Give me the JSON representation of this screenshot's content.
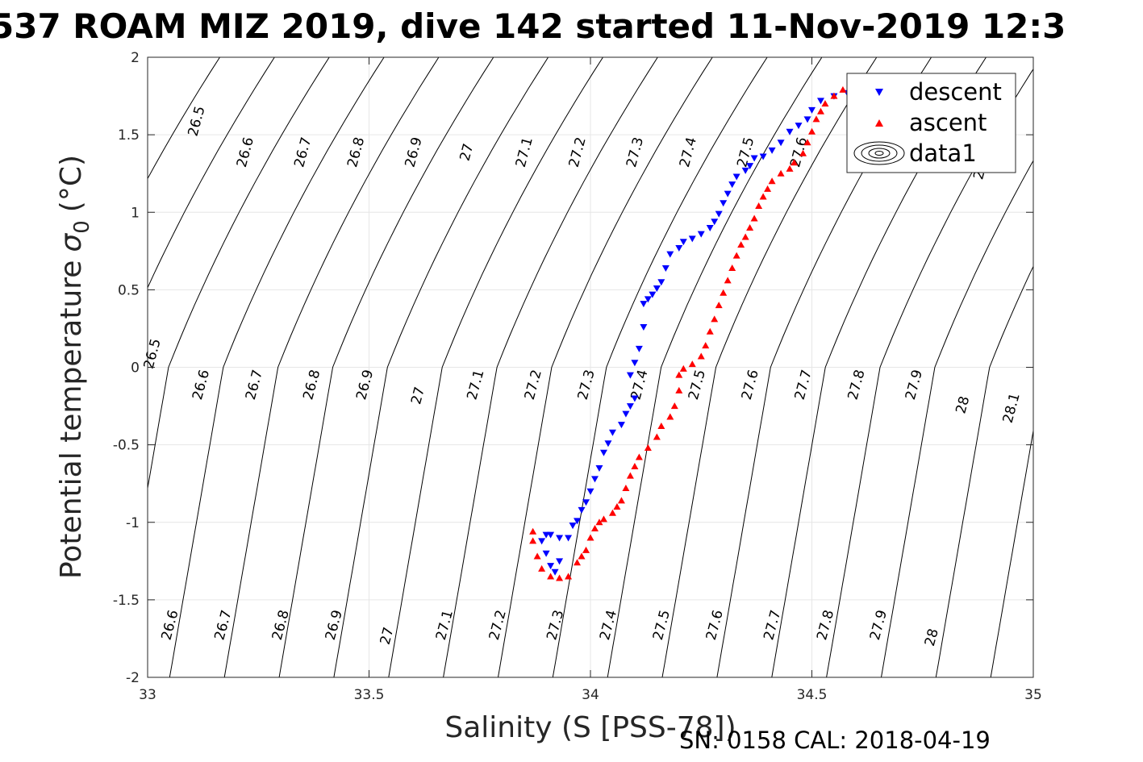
{
  "chart_data": {
    "type": "scatter",
    "title": "537 ROAM MIZ 2019, dive 142 started 11-Nov-2019 12:3",
    "xlabel": "Salinity (S [PSS-78])",
    "ylabel": "Potential temperature",
    "ylabel_symbol": "σ",
    "ylabel_sub": "0",
    "ylabel_unit": "(°C)",
    "xlim": [
      33,
      35
    ],
    "ylim": [
      -2,
      2
    ],
    "xticks": [
      "33",
      "33.5",
      "34",
      "34.5",
      "35"
    ],
    "yticks": [
      "2",
      "1.5",
      "1",
      "0.5",
      "0",
      "-0.5",
      "-1",
      "-1.5",
      "-2"
    ],
    "grid": true,
    "legend_position": "top-right",
    "footer": "SN: 0158  CAL: 2018-04-19",
    "series": [
      {
        "name": "descent",
        "marker": "triangle-down",
        "color": "#0000ff",
        "points": [
          [
            34.58,
            1.77
          ],
          [
            34.55,
            1.75
          ],
          [
            34.52,
            1.72
          ],
          [
            34.5,
            1.66
          ],
          [
            34.49,
            1.6
          ],
          [
            34.47,
            1.56
          ],
          [
            34.45,
            1.52
          ],
          [
            34.43,
            1.45
          ],
          [
            34.41,
            1.4
          ],
          [
            34.39,
            1.36
          ],
          [
            34.37,
            1.35
          ],
          [
            34.36,
            1.3
          ],
          [
            34.35,
            1.27
          ],
          [
            34.33,
            1.23
          ],
          [
            34.32,
            1.18
          ],
          [
            34.31,
            1.12
          ],
          [
            34.3,
            1.06
          ],
          [
            34.29,
            0.99
          ],
          [
            34.28,
            0.94
          ],
          [
            34.27,
            0.9
          ],
          [
            34.25,
            0.86
          ],
          [
            34.23,
            0.83
          ],
          [
            34.21,
            0.81
          ],
          [
            34.2,
            0.77
          ],
          [
            34.18,
            0.73
          ],
          [
            34.17,
            0.64
          ],
          [
            34.16,
            0.55
          ],
          [
            34.15,
            0.51
          ],
          [
            34.14,
            0.47
          ],
          [
            34.13,
            0.44
          ],
          [
            34.12,
            0.41
          ],
          [
            34.12,
            0.26
          ],
          [
            34.11,
            0.12
          ],
          [
            34.1,
            0.03
          ],
          [
            34.09,
            -0.05
          ],
          [
            34.1,
            -0.2
          ],
          [
            34.09,
            -0.25
          ],
          [
            34.08,
            -0.3
          ],
          [
            34.07,
            -0.37
          ],
          [
            34.05,
            -0.42
          ],
          [
            34.04,
            -0.49
          ],
          [
            34.03,
            -0.55
          ],
          [
            34.02,
            -0.65
          ],
          [
            34.01,
            -0.72
          ],
          [
            34.0,
            -0.8
          ],
          [
            33.99,
            -0.87
          ],
          [
            33.98,
            -0.92
          ],
          [
            33.97,
            -0.99
          ],
          [
            33.96,
            -1.02
          ],
          [
            33.95,
            -1.1
          ],
          [
            33.93,
            -1.25
          ],
          [
            33.92,
            -1.32
          ],
          [
            33.91,
            -1.28
          ],
          [
            33.9,
            -1.2
          ],
          [
            33.89,
            -1.12
          ],
          [
            33.9,
            -1.08
          ],
          [
            33.91,
            -1.08
          ],
          [
            33.93,
            -1.1
          ]
        ]
      },
      {
        "name": "ascent",
        "marker": "triangle-up",
        "color": "#ff0000",
        "points": [
          [
            34.57,
            1.79
          ],
          [
            34.55,
            1.75
          ],
          [
            34.53,
            1.7
          ],
          [
            34.52,
            1.65
          ],
          [
            34.51,
            1.6
          ],
          [
            34.5,
            1.52
          ],
          [
            34.49,
            1.45
          ],
          [
            34.48,
            1.38
          ],
          [
            34.46,
            1.32
          ],
          [
            34.45,
            1.28
          ],
          [
            34.43,
            1.25
          ],
          [
            34.41,
            1.2
          ],
          [
            34.4,
            1.15
          ],
          [
            34.39,
            1.1
          ],
          [
            34.38,
            1.04
          ],
          [
            34.37,
            0.96
          ],
          [
            34.36,
            0.9
          ],
          [
            34.35,
            0.84
          ],
          [
            34.34,
            0.79
          ],
          [
            34.33,
            0.72
          ],
          [
            34.32,
            0.64
          ],
          [
            34.31,
            0.56
          ],
          [
            34.3,
            0.48
          ],
          [
            34.29,
            0.4
          ],
          [
            34.28,
            0.31
          ],
          [
            34.27,
            0.23
          ],
          [
            34.26,
            0.14
          ],
          [
            34.25,
            0.07
          ],
          [
            34.23,
            0.02
          ],
          [
            34.21,
            -0.01
          ],
          [
            34.2,
            -0.05
          ],
          [
            34.2,
            -0.15
          ],
          [
            34.19,
            -0.25
          ],
          [
            34.18,
            -0.32
          ],
          [
            34.16,
            -0.38
          ],
          [
            34.15,
            -0.45
          ],
          [
            34.13,
            -0.52
          ],
          [
            34.11,
            -0.58
          ],
          [
            34.1,
            -0.64
          ],
          [
            34.09,
            -0.7
          ],
          [
            34.08,
            -0.78
          ],
          [
            34.07,
            -0.86
          ],
          [
            34.06,
            -0.9
          ],
          [
            34.05,
            -0.94
          ],
          [
            34.03,
            -0.98
          ],
          [
            34.02,
            -1.0
          ],
          [
            34.01,
            -1.04
          ],
          [
            34.0,
            -1.1
          ],
          [
            33.99,
            -1.18
          ],
          [
            33.98,
            -1.22
          ],
          [
            33.97,
            -1.26
          ],
          [
            33.95,
            -1.35
          ],
          [
            33.93,
            -1.36
          ],
          [
            33.91,
            -1.35
          ],
          [
            33.89,
            -1.3
          ],
          [
            33.88,
            -1.22
          ],
          [
            33.87,
            -1.12
          ],
          [
            33.87,
            -1.06
          ]
        ]
      },
      {
        "name": "data1",
        "marker": "contour"
      }
    ],
    "contour_labels": [
      {
        "text": "26.5",
        "x": 33.12,
        "y": 1.58
      },
      {
        "text": "26.6",
        "x": 33.23,
        "y": 1.38
      },
      {
        "text": "26.7",
        "x": 33.36,
        "y": 1.38
      },
      {
        "text": "26.8",
        "x": 33.48,
        "y": 1.38
      },
      {
        "text": "26.9",
        "x": 33.61,
        "y": 1.38
      },
      {
        "text": "27",
        "x": 33.73,
        "y": 1.38
      },
      {
        "text": "27.1",
        "x": 33.86,
        "y": 1.38
      },
      {
        "text": "27.2",
        "x": 33.98,
        "y": 1.38
      },
      {
        "text": "27.3",
        "x": 34.11,
        "y": 1.38
      },
      {
        "text": "27.4",
        "x": 34.23,
        "y": 1.38
      },
      {
        "text": "27.5",
        "x": 34.36,
        "y": 1.38
      },
      {
        "text": "27.6",
        "x": 34.48,
        "y": 1.38
      },
      {
        "text": "28",
        "x": 34.89,
        "y": 1.26
      },
      {
        "text": "26.5",
        "x": 33.02,
        "y": 0.08
      },
      {
        "text": "26.6",
        "x": 33.13,
        "y": -0.12
      },
      {
        "text": "26.7",
        "x": 33.25,
        "y": -0.12
      },
      {
        "text": "26.8",
        "x": 33.38,
        "y": -0.12
      },
      {
        "text": "26.9",
        "x": 33.5,
        "y": -0.12
      },
      {
        "text": "27",
        "x": 33.62,
        "y": -0.19
      },
      {
        "text": "27.1",
        "x": 33.75,
        "y": -0.12
      },
      {
        "text": "27.2",
        "x": 33.88,
        "y": -0.12
      },
      {
        "text": "27.3",
        "x": 34.0,
        "y": -0.12
      },
      {
        "text": "27.4",
        "x": 34.12,
        "y": -0.12
      },
      {
        "text": "27.5",
        "x": 34.25,
        "y": -0.12
      },
      {
        "text": "27.6",
        "x": 34.37,
        "y": -0.12
      },
      {
        "text": "27.7",
        "x": 34.49,
        "y": -0.12
      },
      {
        "text": "27.8",
        "x": 34.61,
        "y": -0.12
      },
      {
        "text": "27.9",
        "x": 34.74,
        "y": -0.12
      },
      {
        "text": "28",
        "x": 34.85,
        "y": -0.25
      },
      {
        "text": "28.1",
        "x": 34.96,
        "y": -0.27
      },
      {
        "text": "26.6",
        "x": 33.06,
        "y": -1.67
      },
      {
        "text": "26.7",
        "x": 33.18,
        "y": -1.67
      },
      {
        "text": "26.8",
        "x": 33.31,
        "y": -1.67
      },
      {
        "text": "26.9",
        "x": 33.43,
        "y": -1.67
      },
      {
        "text": "27",
        "x": 33.55,
        "y": -1.74
      },
      {
        "text": "27.1",
        "x": 33.68,
        "y": -1.67
      },
      {
        "text": "27.2",
        "x": 33.8,
        "y": -1.67
      },
      {
        "text": "27.3",
        "x": 33.93,
        "y": -1.67
      },
      {
        "text": "27.4",
        "x": 34.05,
        "y": -1.67
      },
      {
        "text": "27.5",
        "x": 34.17,
        "y": -1.67
      },
      {
        "text": "27.6",
        "x": 34.29,
        "y": -1.67
      },
      {
        "text": "27.7",
        "x": 34.42,
        "y": -1.67
      },
      {
        "text": "27.8",
        "x": 34.54,
        "y": -1.67
      },
      {
        "text": "27.9",
        "x": 34.66,
        "y": -1.67
      },
      {
        "text": "28",
        "x": 34.78,
        "y": -1.75
      }
    ]
  }
}
